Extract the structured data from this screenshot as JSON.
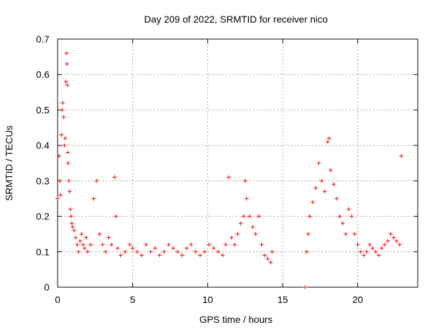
{
  "chart_data": {
    "type": "scatter",
    "title": "Day 209 of 2022, SRMTID for receiver nico",
    "xlabel": "GPS time / hours",
    "ylabel": "SRMTID / TECUs",
    "xlim": [
      0,
      24
    ],
    "ylim": [
      0,
      0.7
    ],
    "xticks": [
      0,
      5,
      10,
      15,
      20
    ],
    "yticks": [
      0,
      0.1,
      0.2,
      0.3,
      0.4,
      0.5,
      0.6,
      0.7
    ],
    "xtick_labels": [
      "0",
      "5",
      "10",
      "15",
      "20"
    ],
    "ytick_labels": [
      "0",
      "0.1",
      "0.2",
      "0.3",
      "0.4",
      "0.5",
      "0.6",
      "0.7"
    ],
    "grid": true,
    "marker": "+",
    "color": "#ff0000",
    "series": [
      {
        "name": "SRMTID",
        "x": [
          0.0,
          0.1,
          0.15,
          0.2,
          0.25,
          0.3,
          0.35,
          0.4,
          0.45,
          0.5,
          0.55,
          0.6,
          0.62,
          0.65,
          0.68,
          0.7,
          0.75,
          0.8,
          0.85,
          0.9,
          0.95,
          1.0,
          1.1,
          1.2,
          1.3,
          1.4,
          1.5,
          1.6,
          1.7,
          1.8,
          1.9,
          2.0,
          2.2,
          2.4,
          2.6,
          2.8,
          3.0,
          3.2,
          3.4,
          3.6,
          3.8,
          3.9,
          4.0,
          4.2,
          4.5,
          4.8,
          5.0,
          5.3,
          5.6,
          5.9,
          6.2,
          6.5,
          6.8,
          7.1,
          7.4,
          7.7,
          8.0,
          8.3,
          8.6,
          8.9,
          9.2,
          9.5,
          9.8,
          10.1,
          10.4,
          10.7,
          11.0,
          11.2,
          11.4,
          11.6,
          11.8,
          12.0,
          12.2,
          12.4,
          12.5,
          12.6,
          12.8,
          13.0,
          13.2,
          13.4,
          13.6,
          13.8,
          14.0,
          14.2,
          14.3,
          16.5,
          16.6,
          16.7,
          16.8,
          17.0,
          17.2,
          17.4,
          17.6,
          17.8,
          18.0,
          18.1,
          18.2,
          18.4,
          18.6,
          18.8,
          19.0,
          19.2,
          19.4,
          19.6,
          19.8,
          20.0,
          20.2,
          20.4,
          20.6,
          20.8,
          21.0,
          21.2,
          21.4,
          21.6,
          21.8,
          22.0,
          22.2,
          22.4,
          22.6,
          22.8,
          22.9
        ],
        "y": [
          0.25,
          0.37,
          0.3,
          0.26,
          0.43,
          0.5,
          0.52,
          0.48,
          0.4,
          0.42,
          0.58,
          0.66,
          0.63,
          0.57,
          0.38,
          0.35,
          0.3,
          0.27,
          0.22,
          0.2,
          0.18,
          0.17,
          0.16,
          0.14,
          0.12,
          0.1,
          0.13,
          0.15,
          0.12,
          0.11,
          0.14,
          0.1,
          0.12,
          0.25,
          0.3,
          0.15,
          0.12,
          0.1,
          0.14,
          0.12,
          0.31,
          0.2,
          0.11,
          0.09,
          0.1,
          0.12,
          0.11,
          0.1,
          0.09,
          0.12,
          0.1,
          0.11,
          0.09,
          0.1,
          0.12,
          0.11,
          0.1,
          0.09,
          0.11,
          0.12,
          0.1,
          0.09,
          0.1,
          0.12,
          0.11,
          0.1,
          0.09,
          0.12,
          0.31,
          0.14,
          0.12,
          0.15,
          0.18,
          0.2,
          0.3,
          0.25,
          0.2,
          0.17,
          0.15,
          0.2,
          0.12,
          0.09,
          0.08,
          0.07,
          0.1,
          0.0,
          0.1,
          0.15,
          0.2,
          0.24,
          0.28,
          0.35,
          0.3,
          0.27,
          0.41,
          0.42,
          0.33,
          0.29,
          0.25,
          0.2,
          0.18,
          0.15,
          0.22,
          0.2,
          0.15,
          0.12,
          0.1,
          0.09,
          0.1,
          0.12,
          0.11,
          0.1,
          0.09,
          0.11,
          0.12,
          0.13,
          0.15,
          0.14,
          0.13,
          0.12,
          0.37
        ]
      }
    ]
  }
}
